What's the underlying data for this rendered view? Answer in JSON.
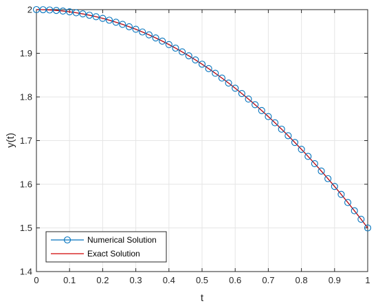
{
  "chart_data": {
    "type": "line",
    "title": "",
    "xlabel": "t",
    "ylabel": "y(t)",
    "xlim": [
      0,
      1
    ],
    "ylim": [
      1.4,
      2
    ],
    "xticks": [
      "0",
      "0.1",
      "0.2",
      "0.3",
      "0.4",
      "0.5",
      "0.6",
      "0.7",
      "0.8",
      "0.9",
      "1"
    ],
    "yticks": [
      "1.4",
      "1.5",
      "1.6",
      "1.7",
      "1.8",
      "1.9",
      "2"
    ],
    "grid": true,
    "legend_position": "bottom-left",
    "colors": {
      "numerical": "#0072BD",
      "exact": "#D00000"
    },
    "series": [
      {
        "name": "Numerical Solution",
        "marker": "circle",
        "x": [
          0,
          0.02,
          0.04,
          0.06,
          0.08,
          0.1,
          0.12,
          0.14,
          0.16,
          0.18,
          0.2,
          0.22,
          0.24,
          0.26,
          0.28,
          0.3,
          0.32,
          0.34,
          0.36,
          0.38,
          0.4,
          0.42,
          0.44,
          0.46,
          0.48,
          0.5,
          0.52,
          0.54,
          0.56,
          0.58,
          0.6,
          0.62,
          0.64,
          0.66,
          0.68,
          0.7,
          0.72,
          0.74,
          0.76,
          0.78,
          0.8,
          0.82,
          0.84,
          0.86,
          0.88,
          0.9,
          0.92,
          0.94,
          0.96,
          0.98,
          1
        ],
        "y": [
          2.0,
          1.9998,
          1.9992,
          1.9982,
          1.9968,
          1.995,
          1.9928,
          1.9902,
          1.9872,
          1.9838,
          1.98,
          1.9758,
          1.9712,
          1.9662,
          1.9608,
          1.955,
          1.9488,
          1.9422,
          1.9352,
          1.9278,
          1.92,
          1.9118,
          1.9032,
          1.8942,
          1.8848,
          1.875,
          1.8648,
          1.8542,
          1.8432,
          1.8318,
          1.82,
          1.8078,
          1.7952,
          1.7822,
          1.7688,
          1.755,
          1.7408,
          1.7262,
          1.7112,
          1.6958,
          1.68,
          1.6638,
          1.6472,
          1.6302,
          1.6128,
          1.595,
          1.5768,
          1.5582,
          1.5392,
          1.5198,
          1.5
        ]
      },
      {
        "name": "Exact Solution",
        "marker": "none",
        "x": [
          0,
          0.1,
          0.2,
          0.3,
          0.4,
          0.5,
          0.6,
          0.7,
          0.8,
          0.9,
          1
        ],
        "y": [
          2.0,
          1.995,
          1.98,
          1.955,
          1.92,
          1.875,
          1.82,
          1.755,
          1.68,
          1.595,
          1.5
        ]
      }
    ]
  }
}
